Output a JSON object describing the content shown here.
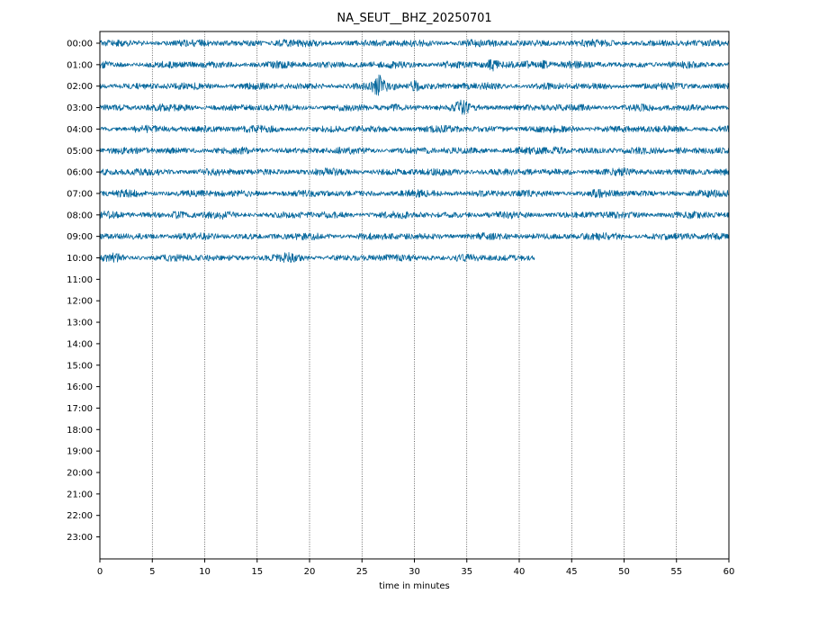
{
  "chart_data": {
    "type": "line",
    "title": "NA_SEUT__BHZ_20250701",
    "xlabel": "time in minutes",
    "ylabel": "",
    "xlim": [
      0,
      60
    ],
    "x_ticks": [
      "0",
      "5",
      "10",
      "15",
      "20",
      "25",
      "30",
      "35",
      "40",
      "45",
      "50",
      "55",
      "60"
    ],
    "x_tick_values": [
      0,
      5,
      10,
      15,
      20,
      25,
      30,
      35,
      40,
      45,
      50,
      55,
      60
    ],
    "y_ticks": [
      "00:00",
      "01:00",
      "02:00",
      "03:00",
      "04:00",
      "05:00",
      "06:00",
      "07:00",
      "08:00",
      "09:00",
      "10:00",
      "11:00",
      "12:00",
      "13:00",
      "14:00",
      "15:00",
      "16:00",
      "17:00",
      "18:00",
      "19:00",
      "20:00",
      "21:00",
      "22:00",
      "23:00"
    ],
    "grid": "vertical dotted lines at major x ticks",
    "trace_color": "#0a6a9e",
    "traces": [
      {
        "hour": "00:00",
        "start_min": 0,
        "end_min": 60,
        "events": [
          [
            17.5,
            1.2
          ],
          [
            35,
            1.3
          ],
          [
            42,
            1.1
          ]
        ]
      },
      {
        "hour": "01:00",
        "start_min": 0,
        "end_min": 60,
        "events": [
          [
            21.5,
            1.3
          ],
          [
            33,
            1.2
          ],
          [
            37.5,
            1.8
          ],
          [
            41,
            1.6
          ],
          [
            42.3,
            1.9
          ]
        ]
      },
      {
        "hour": "02:00",
        "start_min": 0,
        "end_min": 60,
        "events": [
          [
            26.7,
            2.4
          ],
          [
            28,
            1.4
          ],
          [
            30,
            2.0
          ],
          [
            35,
            1.1
          ]
        ]
      },
      {
        "hour": "03:00",
        "start_min": 0,
        "end_min": 60,
        "events": [
          [
            2,
            1.1
          ],
          [
            28.5,
            1.3
          ],
          [
            34.6,
            1.8
          ]
        ]
      },
      {
        "hour": "04:00",
        "start_min": 0,
        "end_min": 60,
        "events": [
          [
            10,
            1.1
          ],
          [
            45,
            1.2
          ]
        ]
      },
      {
        "hour": "05:00",
        "start_min": 0,
        "end_min": 60,
        "events": [
          [
            43.7,
            1.6
          ],
          [
            55.3,
            1.6
          ]
        ]
      },
      {
        "hour": "06:00",
        "start_min": 0,
        "end_min": 60,
        "events": [
          [
            3,
            1.1
          ],
          [
            36,
            1.1
          ],
          [
            47,
            1.1
          ]
        ]
      },
      {
        "hour": "07:00",
        "start_min": 0,
        "end_min": 60,
        "events": [
          [
            36.5,
            1.1
          ],
          [
            47.5,
            1.2
          ]
        ]
      },
      {
        "hour": "08:00",
        "start_min": 0,
        "end_min": 60,
        "events": [
          [
            7.5,
            1.4
          ],
          [
            12,
            1.2
          ],
          [
            31,
            1.1
          ]
        ]
      },
      {
        "hour": "09:00",
        "start_min": 0,
        "end_min": 60,
        "events": [
          [
            25,
            1.1
          ],
          [
            49.5,
            1.3
          ],
          [
            56,
            1.1
          ]
        ]
      },
      {
        "hour": "10:00",
        "start_min": 0,
        "end_min": 41.5,
        "events": [
          [
            1.5,
            1.4
          ],
          [
            10,
            1.2
          ],
          [
            18,
            1.3
          ],
          [
            31.5,
            1.3
          ]
        ]
      }
    ]
  }
}
